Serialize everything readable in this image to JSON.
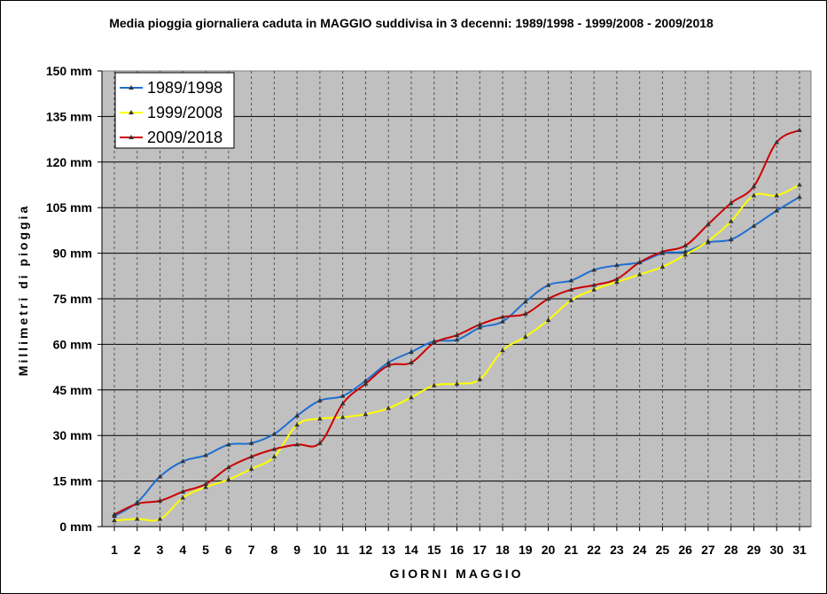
{
  "chart_data": {
    "type": "line",
    "title": "Media pioggia giornaliera caduta in MAGGIO suddivisa in 3 decenni: 1989/1998 - 1999/2008 - 2009/2018",
    "xlabel": "GIORNI  MAGGIO",
    "ylabel": "Millimetri di pioggia",
    "ylim": [
      0,
      150
    ],
    "ytick_values": [
      0,
      15,
      30,
      45,
      60,
      75,
      90,
      105,
      120,
      135,
      150
    ],
    "ytick_labels": [
      "0 mm",
      "15 mm",
      "30 mm",
      "45 mm",
      "60 mm",
      "75 mm",
      "90 mm",
      "105 mm",
      "120 mm",
      "135 mm",
      "150 mm"
    ],
    "categories": [
      "1",
      "2",
      "3",
      "4",
      "5",
      "6",
      "7",
      "8",
      "9",
      "10",
      "11",
      "12",
      "13",
      "14",
      "15",
      "16",
      "17",
      "18",
      "19",
      "20",
      "21",
      "22",
      "23",
      "24",
      "25",
      "26",
      "27",
      "28",
      "29",
      "30",
      "31"
    ],
    "grid": true,
    "legend_position": "top-left",
    "series": [
      {
        "name": "1989/1998",
        "color": "#1f6fd0",
        "values": [
          3.5,
          8,
          16.5,
          21.5,
          23.5,
          27,
          27.5,
          30.5,
          36.5,
          41.5,
          43,
          48,
          54,
          57.5,
          61,
          61.5,
          65.5,
          67.5,
          74,
          79.5,
          81,
          84.5,
          86,
          87,
          90,
          90.5,
          93.5,
          94.5,
          99,
          104,
          108.5
        ]
      },
      {
        "name": "1999/2008",
        "color": "#ffff00",
        "values": [
          2,
          2.5,
          2.5,
          9.5,
          13,
          15.5,
          19,
          23,
          33.5,
          35.5,
          36,
          37,
          39,
          42.5,
          46.5,
          47,
          48.5,
          58,
          62.5,
          68,
          74.5,
          78,
          80.5,
          83,
          85.5,
          89.5,
          94,
          100.5,
          109,
          109,
          112.5
        ]
      },
      {
        "name": "2009/2018",
        "color": "#cc0000",
        "values": [
          4,
          7.5,
          8.5,
          11.5,
          14,
          19.5,
          23,
          25.5,
          27,
          27.5,
          40.5,
          47,
          53,
          54,
          60.5,
          63,
          66.5,
          69,
          70,
          75,
          78,
          79.5,
          81.5,
          87,
          90.5,
          92.5,
          99.5,
          106.5,
          112,
          126.5,
          130.5
        ]
      }
    ]
  }
}
